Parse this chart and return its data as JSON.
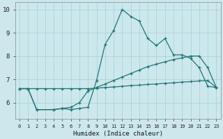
{
  "xlabel": "Humidex (Indice chaleur)",
  "bg_color": "#cce8ec",
  "grid_color": "#aacdd4",
  "line_color": "#1e7575",
  "xlim": [
    -0.5,
    23.5
  ],
  "ylim": [
    5.3,
    10.3
  ],
  "xticks": [
    0,
    1,
    2,
    3,
    4,
    5,
    6,
    7,
    8,
    9,
    10,
    11,
    12,
    13,
    14,
    15,
    16,
    17,
    18,
    19,
    20,
    21,
    22,
    23
  ],
  "yticks": [
    6,
    7,
    8,
    9,
    10
  ],
  "line1_x": [
    0,
    1,
    2,
    4,
    5,
    6,
    7,
    8,
    9,
    10,
    11,
    12,
    13,
    14,
    15,
    16,
    17,
    18,
    19,
    20,
    21,
    22,
    23
  ],
  "line1_y": [
    6.6,
    6.6,
    5.7,
    5.7,
    5.75,
    5.7,
    5.75,
    5.8,
    6.95,
    8.5,
    9.1,
    10.0,
    9.7,
    9.5,
    8.75,
    8.45,
    8.75,
    8.05,
    8.05,
    7.9,
    7.5,
    6.7,
    6.65
  ],
  "line2_x": [
    0,
    1,
    2,
    3,
    4,
    5,
    6,
    7,
    8,
    9,
    10,
    11,
    12,
    13,
    14,
    15,
    16,
    17,
    18,
    19,
    20,
    21,
    22,
    23
  ],
  "line2_y": [
    6.6,
    6.6,
    6.6,
    6.6,
    6.6,
    6.6,
    6.6,
    6.6,
    6.6,
    6.62,
    6.65,
    6.67,
    6.7,
    6.73,
    6.75,
    6.78,
    6.8,
    6.83,
    6.85,
    6.88,
    6.9,
    6.93,
    6.95,
    6.65
  ],
  "line3_x": [
    0,
    1,
    2,
    4,
    5,
    6,
    7,
    8,
    9,
    10,
    11,
    12,
    13,
    14,
    15,
    16,
    17,
    18,
    19,
    20,
    21,
    22,
    23
  ],
  "line3_y": [
    6.6,
    6.6,
    5.7,
    5.7,
    5.75,
    5.8,
    6.0,
    6.5,
    6.65,
    6.8,
    6.95,
    7.1,
    7.25,
    7.4,
    7.55,
    7.65,
    7.75,
    7.85,
    7.92,
    8.0,
    8.0,
    7.5,
    6.65
  ]
}
